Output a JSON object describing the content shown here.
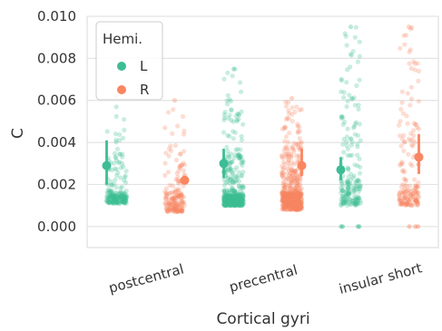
{
  "chart_data": {
    "type": "scatter",
    "subtype": "strip-plot-with-mean-and-interval",
    "title": "",
    "xlabel": "Cortical gyri",
    "ylabel": "C",
    "ylim": [
      -0.001,
      0.01
    ],
    "yticks": [
      "0.000",
      "0.002",
      "0.004",
      "0.006",
      "0.008",
      "0.010"
    ],
    "categories": [
      "postcentral",
      "precentral",
      "insular short"
    ],
    "grid": true,
    "legend": {
      "title": "Hemi.",
      "placement": "top-left",
      "entries": [
        {
          "name": "L",
          "color": "#3dbd95"
        },
        {
          "name": "R",
          "color": "#f98661"
        }
      ]
    },
    "series": [
      {
        "name": "L",
        "color": "#3dbd95",
        "mean": [
          0.0029,
          0.003,
          0.0027
        ],
        "interval": [
          [
            0.002,
            0.0041
          ],
          [
            0.0023,
            0.0037
          ],
          [
            0.0022,
            0.0033
          ]
        ],
        "points": [
          {
            "density": [
              [
                0.0011,
                0.0016,
                150
              ],
              [
                0.0016,
                0.0035,
                55
              ],
              [
                0.0035,
                0.0058,
                12
              ]
            ],
            "max": 0.0062
          },
          {
            "density": [
              [
                0.001,
                0.0015,
                330
              ],
              [
                0.0015,
                0.0035,
                120
              ],
              [
                0.0035,
                0.006,
                35
              ],
              [
                0.006,
                0.0075,
                8
              ]
            ],
            "max": 0.0075
          },
          {
            "density": [
              [
                0.001,
                0.0022,
                110
              ],
              [
                0.0022,
                0.004,
                30
              ],
              [
                0.004,
                0.0085,
                45
              ],
              [
                0.0085,
                0.0095,
                6
              ]
            ],
            "max": 0.0095,
            "zero_count": 4
          }
        ]
      },
      {
        "name": "R",
        "color": "#f98661",
        "mean": [
          0.0022,
          0.0029,
          0.0033
        ],
        "interval": [
          [
            0.0021,
            0.0023
          ],
          [
            0.0024,
            0.0037
          ],
          [
            0.0025,
            0.0044
          ]
        ],
        "points": [
          {
            "density": [
              [
                0.0007,
                0.0016,
                120
              ],
              [
                0.0016,
                0.0035,
                40
              ],
              [
                0.0035,
                0.006,
                14
              ]
            ],
            "max": 0.006
          },
          {
            "density": [
              [
                0.0008,
                0.0016,
                320
              ],
              [
                0.0016,
                0.0035,
                140
              ],
              [
                0.0035,
                0.006,
                50
              ]
            ],
            "max": 0.0061
          },
          {
            "density": [
              [
                0.001,
                0.002,
                100
              ],
              [
                0.002,
                0.004,
                25
              ],
              [
                0.004,
                0.0085,
                40
              ],
              [
                0.0085,
                0.0095,
                5
              ]
            ],
            "max": 0.0095,
            "zero_count": 3
          }
        ]
      }
    ]
  }
}
